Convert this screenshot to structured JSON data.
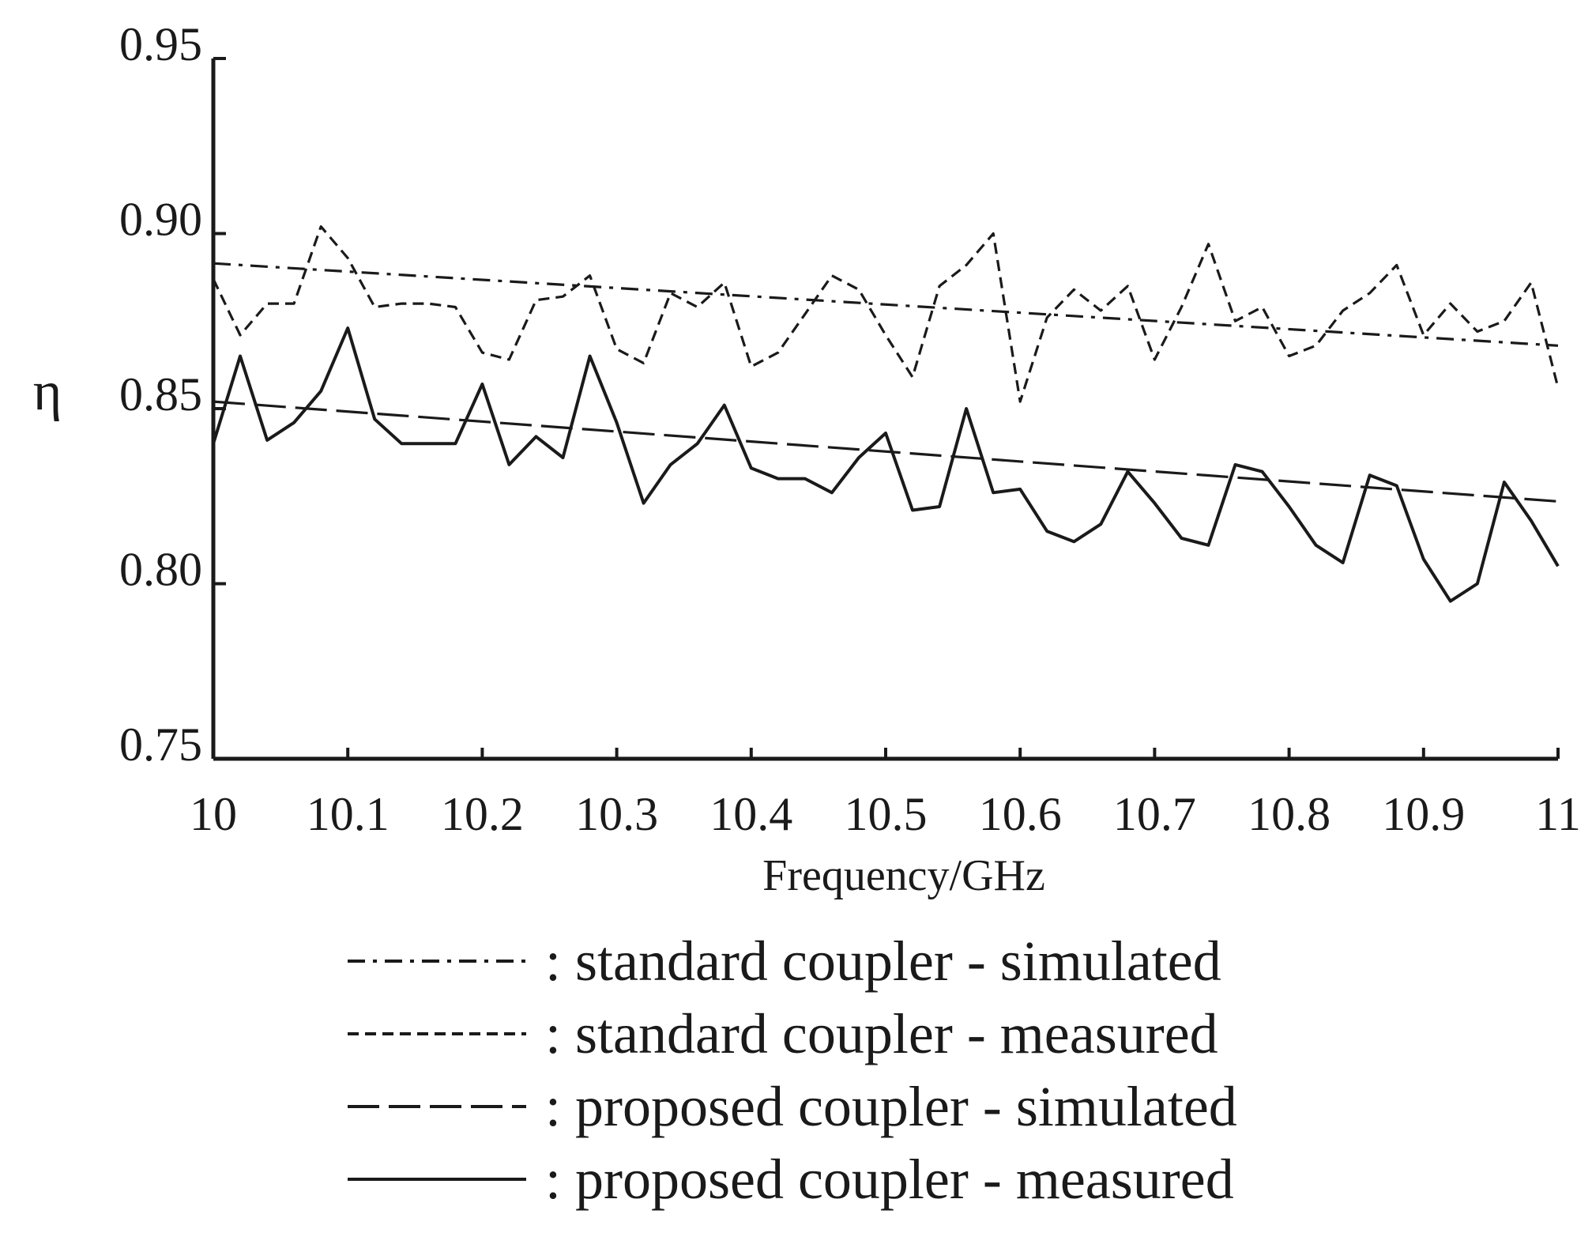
{
  "chart_data": {
    "type": "line",
    "title": "",
    "xlabel": "Frequency/GHz",
    "ylabel": "η",
    "xlim": [
      10,
      11
    ],
    "ylim": [
      0.75,
      0.95
    ],
    "x_ticks": [
      "10",
      "10.1",
      "10.2",
      "10.3",
      "10.4",
      "10.5",
      "10.6",
      "10.7",
      "10.8",
      "10.9",
      "11"
    ],
    "y_ticks": [
      "0.75",
      "0.80",
      "0.85",
      "0.90",
      "0.95"
    ],
    "grid": false,
    "legend_position": "bottom",
    "x": [
      10.0,
      10.02,
      10.04,
      10.06,
      10.08,
      10.1,
      10.12,
      10.14,
      10.16,
      10.18,
      10.2,
      10.22,
      10.24,
      10.26,
      10.28,
      10.3,
      10.32,
      10.34,
      10.36,
      10.38,
      10.4,
      10.42,
      10.44,
      10.46,
      10.48,
      10.5,
      10.52,
      10.54,
      10.56,
      10.58,
      10.6,
      10.62,
      10.64,
      10.66,
      10.68,
      10.7,
      10.72,
      10.74,
      10.76,
      10.78,
      10.8,
      10.82,
      10.84,
      10.86,
      10.88,
      10.9,
      10.92,
      10.94,
      10.96,
      10.98,
      11.0
    ],
    "series": [
      {
        "name": "standard coupler - simulated",
        "style": "dashdot",
        "points": [
          [
            10.0,
            0.8915
          ],
          [
            11.0,
            0.868
          ]
        ]
      },
      {
        "name": "standard coupler - measured",
        "style": "dashed-short",
        "values": [
          0.887,
          0.871,
          0.88,
          0.88,
          0.902,
          0.893,
          0.879,
          0.88,
          0.88,
          0.879,
          0.866,
          0.864,
          0.881,
          0.882,
          0.888,
          0.867,
          0.863,
          0.883,
          0.879,
          0.886,
          0.862,
          0.866,
          0.877,
          0.888,
          0.884,
          0.871,
          0.859,
          0.885,
          0.891,
          0.9,
          0.852,
          0.876,
          0.884,
          0.878,
          0.885,
          0.864,
          0.879,
          0.897,
          0.875,
          0.879,
          0.865,
          0.868,
          0.878,
          0.883,
          0.891,
          0.871,
          0.88,
          0.872,
          0.875,
          0.886,
          0.856
        ]
      },
      {
        "name": "proposed coupler - simulated",
        "style": "dashed-long",
        "points": [
          [
            10.0,
            0.852
          ],
          [
            11.0,
            0.8235
          ]
        ]
      },
      {
        "name": "proposed coupler - measured",
        "style": "solid",
        "values": [
          0.84,
          0.865,
          0.841,
          0.846,
          0.855,
          0.873,
          0.847,
          0.84,
          0.84,
          0.84,
          0.857,
          0.834,
          0.842,
          0.836,
          0.865,
          0.846,
          0.823,
          0.834,
          0.84,
          0.851,
          0.833,
          0.83,
          0.83,
          0.826,
          0.836,
          0.843,
          0.821,
          0.822,
          0.85,
          0.826,
          0.827,
          0.815,
          0.812,
          0.817,
          0.832,
          0.823,
          0.813,
          0.811,
          0.834,
          0.832,
          0.822,
          0.811,
          0.806,
          0.831,
          0.828,
          0.807,
          0.795,
          0.8,
          0.829,
          0.818,
          0.805
        ]
      }
    ]
  },
  "legend": {
    "items": [
      {
        "label": ": standard coupler - simulated"
      },
      {
        "label": ": standard coupler - measured"
      },
      {
        "label": ": proposed coupler - simulated"
      },
      {
        "label": ": proposed coupler - measured"
      }
    ]
  }
}
